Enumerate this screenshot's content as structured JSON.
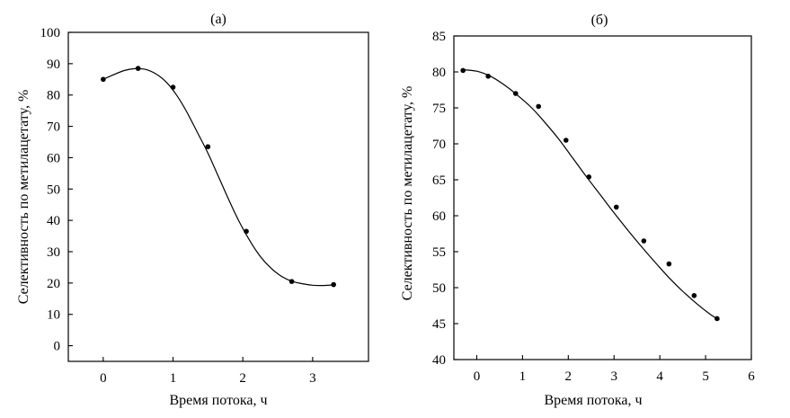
{
  "chart_data": [
    {
      "type": "scatter",
      "title": "(а)",
      "xlabel": "Время потока, ч",
      "ylabel": "Селективность по метилацетату, %",
      "xlim": [
        -0.5,
        3.8
      ],
      "ylim": [
        -5,
        100
      ],
      "xticks": [
        0,
        1,
        2,
        3
      ],
      "yticks": [
        0,
        10,
        20,
        30,
        40,
        50,
        60,
        70,
        80,
        90,
        100
      ],
      "grid": false,
      "series": [
        {
          "x": [
            0,
            0.5,
            1.0,
            1.5,
            2.05,
            2.7,
            3.3
          ],
          "y": [
            85,
            88.5,
            82.5,
            63.5,
            36.5,
            20.5,
            19.5
          ]
        }
      ],
      "curve": {
        "x": [
          0,
          0.15,
          0.3,
          0.45,
          0.6,
          0.75,
          0.9,
          1.05,
          1.2,
          1.35,
          1.5,
          1.65,
          1.8,
          1.95,
          2.1,
          2.25,
          2.4,
          2.55,
          2.7,
          2.85,
          3.0,
          3.15,
          3.3
        ],
        "y": [
          85,
          86.5,
          87.8,
          88.4,
          88.2,
          86.8,
          84.2,
          80.0,
          74.5,
          68.0,
          61.5,
          54.0,
          46.5,
          39.5,
          33.5,
          28.5,
          24.8,
          22.2,
          20.6,
          19.8,
          19.3,
          19.2,
          19.4
        ]
      }
    },
    {
      "type": "scatter",
      "title": "(б)",
      "xlabel": "Время потока, ч",
      "ylabel": "Селективность по метилацетату, %",
      "xlim": [
        -0.5,
        6
      ],
      "ylim": [
        40,
        85
      ],
      "xticks": [
        0,
        1,
        2,
        3,
        4,
        5,
        6
      ],
      "yticks": [
        40,
        45,
        50,
        55,
        60,
        65,
        70,
        75,
        80,
        85
      ],
      "grid": false,
      "series": [
        {
          "x": [
            -0.3,
            0.25,
            0.85,
            1.35,
            1.95,
            2.45,
            3.05,
            3.65,
            4.2,
            4.75,
            5.25
          ],
          "y": [
            80.2,
            79.4,
            77.0,
            75.2,
            70.5,
            65.4,
            61.2,
            56.5,
            53.3,
            48.9,
            45.7
          ]
        }
      ],
      "curve": {
        "x": [
          -0.3,
          0.0,
          0.3,
          0.6,
          0.9,
          1.2,
          1.5,
          1.8,
          2.1,
          2.4,
          2.7,
          3.0,
          3.3,
          3.6,
          3.9,
          4.2,
          4.5,
          4.8,
          5.1,
          5.3
        ],
        "y": [
          80.3,
          80.1,
          79.4,
          78.2,
          76.7,
          75.0,
          72.9,
          70.6,
          68.0,
          65.4,
          62.9,
          60.4,
          58.0,
          55.7,
          53.5,
          51.4,
          49.5,
          47.8,
          46.3,
          45.5
        ]
      }
    }
  ]
}
